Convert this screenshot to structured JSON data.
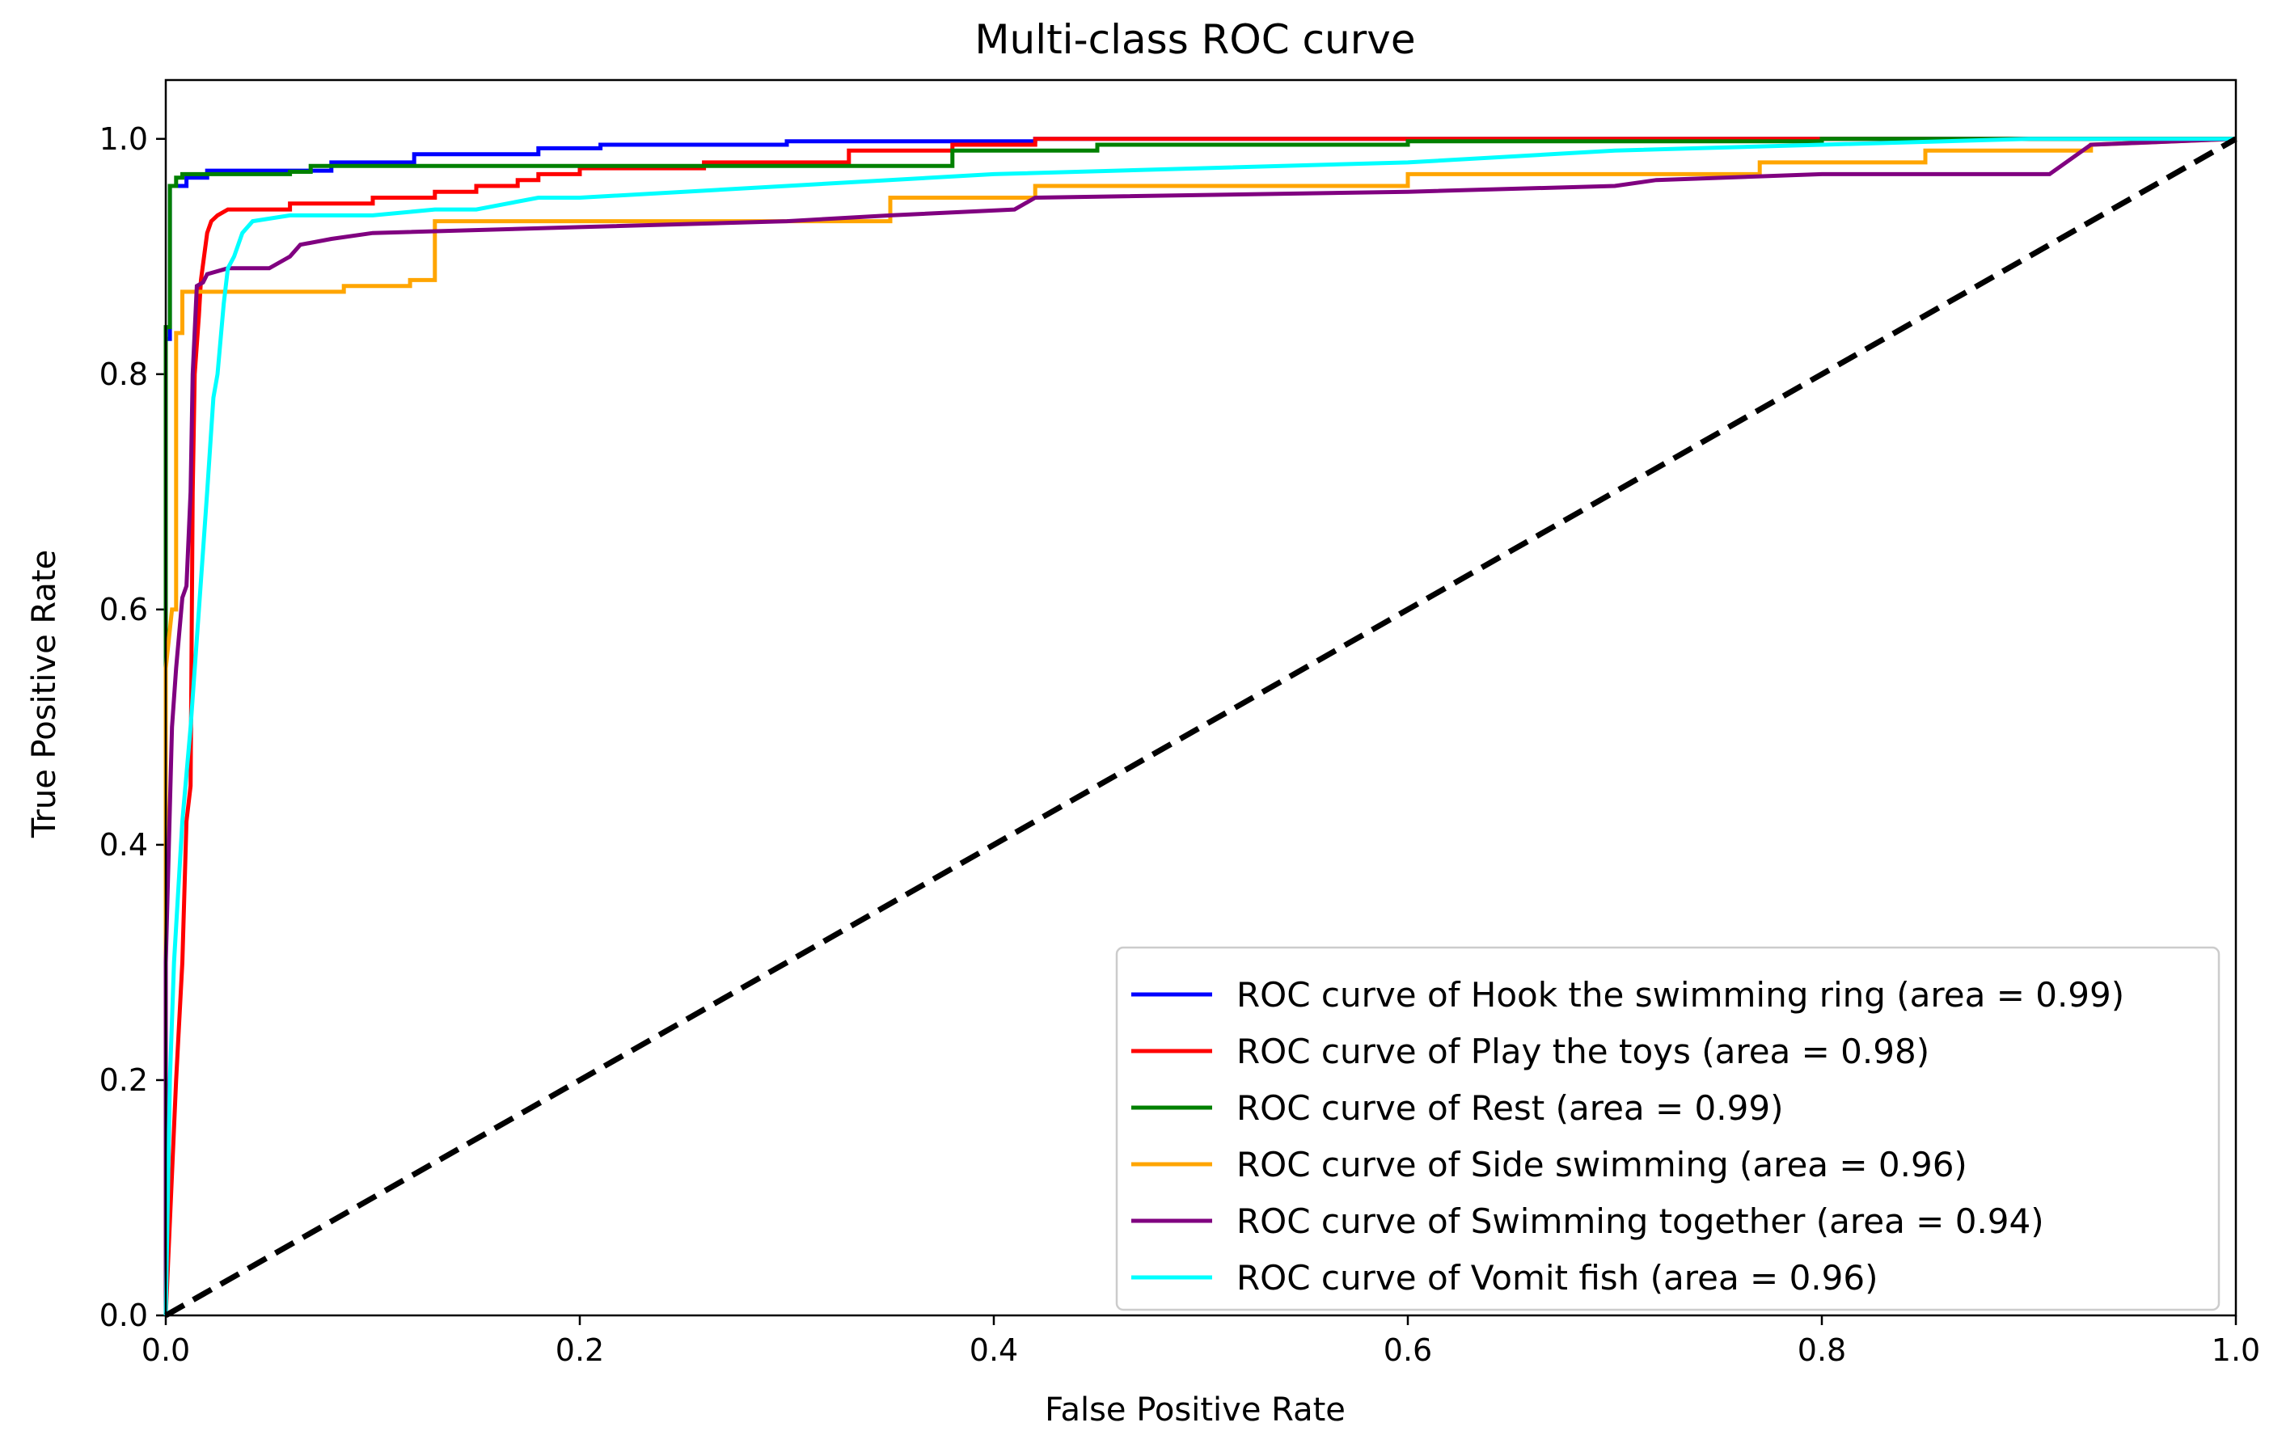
{
  "chart_data": {
    "type": "line",
    "title": "Multi-class ROC curve",
    "xlabel": "False Positive Rate",
    "ylabel": "True Positive Rate",
    "xlim": [
      0.0,
      1.0
    ],
    "ylim": [
      0.0,
      1.05
    ],
    "xticks": [
      0.0,
      0.2,
      0.4,
      0.6,
      0.8,
      1.0
    ],
    "xtick_labels": [
      "0.0",
      "0.2",
      "0.4",
      "0.6",
      "0.8",
      "1.0"
    ],
    "yticks": [
      0.0,
      0.2,
      0.4,
      0.6,
      0.8,
      1.0
    ],
    "ytick_labels": [
      "0.0",
      "0.2",
      "0.4",
      "0.6",
      "0.8",
      "1.0"
    ],
    "grid": false,
    "legend_position": "lower-right",
    "series": [
      {
        "name": "ROC curve of Hook the swimming ring (area = 0.99)",
        "color": "#0000ff",
        "x": [
          0.0,
          0.0,
          0.002,
          0.002,
          0.01,
          0.01,
          0.02,
          0.02,
          0.08,
          0.08,
          0.12,
          0.12,
          0.18,
          0.18,
          0.21,
          0.21,
          0.3,
          0.3,
          0.42,
          0.42,
          0.6,
          0.6,
          1.0
        ],
        "y": [
          0.0,
          0.83,
          0.83,
          0.96,
          0.96,
          0.967,
          0.967,
          0.973,
          0.973,
          0.98,
          0.98,
          0.987,
          0.987,
          0.992,
          0.992,
          0.995,
          0.995,
          0.998,
          0.998,
          1.0,
          1.0,
          1.0,
          1.0
        ]
      },
      {
        "name": "ROC curve of Play the toys (area = 0.98)",
        "color": "#ff0000",
        "x": [
          0.0,
          0.005,
          0.008,
          0.01,
          0.012,
          0.013,
          0.014,
          0.016,
          0.017,
          0.02,
          0.022,
          0.025,
          0.03,
          0.06,
          0.06,
          0.1,
          0.1,
          0.13,
          0.13,
          0.15,
          0.15,
          0.17,
          0.17,
          0.18,
          0.18,
          0.2,
          0.2,
          0.23,
          0.26,
          0.26,
          0.33,
          0.33,
          0.38,
          0.38,
          0.42,
          0.42,
          1.0
        ],
        "y": [
          0.0,
          0.2,
          0.3,
          0.42,
          0.45,
          0.7,
          0.8,
          0.85,
          0.88,
          0.92,
          0.93,
          0.935,
          0.94,
          0.94,
          0.945,
          0.945,
          0.95,
          0.95,
          0.955,
          0.955,
          0.96,
          0.96,
          0.965,
          0.965,
          0.97,
          0.97,
          0.975,
          0.975,
          0.975,
          0.98,
          0.98,
          0.99,
          0.99,
          0.995,
          0.995,
          1.0,
          1.0
        ]
      },
      {
        "name": "ROC curve of Rest (area = 0.99)",
        "color": "#008000",
        "x": [
          0.0,
          0.0,
          0.002,
          0.002,
          0.005,
          0.005,
          0.008,
          0.008,
          0.06,
          0.06,
          0.07,
          0.07,
          0.38,
          0.38,
          0.45,
          0.45,
          0.6,
          0.6,
          0.8,
          0.8,
          1.0
        ],
        "y": [
          0.0,
          0.84,
          0.84,
          0.96,
          0.96,
          0.967,
          0.967,
          0.97,
          0.97,
          0.972,
          0.972,
          0.977,
          0.977,
          0.99,
          0.99,
          0.995,
          0.995,
          0.998,
          0.998,
          1.0,
          1.0
        ]
      },
      {
        "name": "ROC curve of Side swimming (area = 0.96)",
        "color": "#ffa500",
        "x": [
          0.0,
          0.0,
          0.003,
          0.005,
          0.005,
          0.008,
          0.008,
          0.086,
          0.086,
          0.118,
          0.118,
          0.13,
          0.13,
          0.35,
          0.35,
          0.42,
          0.42,
          0.6,
          0.6,
          0.77,
          0.77,
          0.85,
          0.85,
          0.93,
          0.93,
          1.0
        ],
        "y": [
          0.0,
          0.55,
          0.6,
          0.6,
          0.835,
          0.835,
          0.87,
          0.87,
          0.875,
          0.875,
          0.88,
          0.88,
          0.93,
          0.93,
          0.95,
          0.95,
          0.96,
          0.96,
          0.97,
          0.97,
          0.98,
          0.98,
          0.99,
          0.99,
          0.995,
          1.0
        ]
      },
      {
        "name": "ROC curve of Swimming together (area = 0.94)",
        "color": "#800080",
        "x": [
          0.0,
          0.0,
          0.003,
          0.005,
          0.008,
          0.01,
          0.012,
          0.013,
          0.015,
          0.018,
          0.02,
          0.03,
          0.05,
          0.06,
          0.065,
          0.08,
          0.1,
          0.2,
          0.3,
          0.35,
          0.41,
          0.42,
          0.6,
          0.7,
          0.72,
          0.8,
          0.91,
          0.93,
          1.0
        ],
        "y": [
          0.0,
          0.3,
          0.5,
          0.55,
          0.61,
          0.62,
          0.7,
          0.8,
          0.875,
          0.878,
          0.885,
          0.89,
          0.89,
          0.9,
          0.91,
          0.915,
          0.92,
          0.925,
          0.93,
          0.935,
          0.94,
          0.95,
          0.955,
          0.96,
          0.965,
          0.97,
          0.97,
          0.995,
          1.0
        ]
      },
      {
        "name": "ROC curve of Vomit fish (area = 0.96)",
        "color": "#00ffff",
        "x": [
          0.0,
          0.002,
          0.004,
          0.008,
          0.012,
          0.016,
          0.02,
          0.023,
          0.025,
          0.028,
          0.03,
          0.033,
          0.037,
          0.042,
          0.06,
          0.1,
          0.13,
          0.15,
          0.18,
          0.2,
          0.3,
          0.4,
          0.5,
          0.6,
          0.7,
          0.8,
          0.9,
          0.95,
          1.0
        ],
        "y": [
          0.0,
          0.2,
          0.3,
          0.42,
          0.5,
          0.6,
          0.7,
          0.78,
          0.8,
          0.86,
          0.89,
          0.9,
          0.92,
          0.93,
          0.935,
          0.935,
          0.94,
          0.94,
          0.95,
          0.95,
          0.96,
          0.97,
          0.975,
          0.98,
          0.99,
          0.995,
          1.0,
          1.0,
          1.0
        ]
      },
      {
        "name": "chance",
        "color": "#000000",
        "dashed": true,
        "in_legend": false,
        "x": [
          0.0,
          1.0
        ],
        "y": [
          0.0,
          1.0
        ]
      }
    ]
  }
}
